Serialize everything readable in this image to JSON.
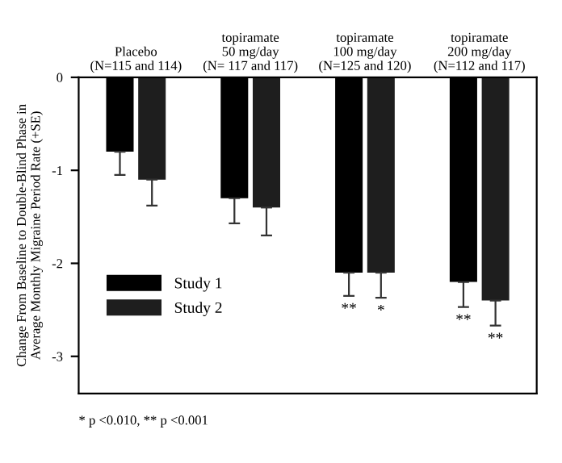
{
  "chart_data": {
    "type": "bar",
    "categories": [
      "Placebo\n(N=115 and 114)",
      "topiramate\n50 mg/day\n(N= 117 and 117)",
      "topiramate\n100 mg/day\n(N=125 and 120)",
      "topiramate\n200 mg/day\n(N=112 and 117)"
    ],
    "series": [
      {
        "name": "Study 1",
        "color": "#000000",
        "values": [
          -0.8,
          -1.3,
          -2.1,
          -2.2
        ],
        "errors": [
          [
            -1.05,
            -0.8
          ],
          [
            -1.57,
            -1.3
          ],
          [
            -2.35,
            -2.1
          ],
          [
            -2.47,
            -2.2
          ]
        ],
        "value_labels": [
          null,
          null,
          "**",
          "**"
        ]
      },
      {
        "name": "Study 2",
        "color": "#1e1e1e",
        "values": [
          -1.1,
          -1.4,
          -2.1,
          -2.4
        ],
        "errors": [
          [
            -1.38,
            -1.1
          ],
          [
            -1.7,
            -1.4
          ],
          [
            -2.37,
            -2.1
          ],
          [
            -2.67,
            -2.4
          ]
        ],
        "value_labels": [
          null,
          null,
          "*",
          "**"
        ]
      }
    ],
    "ylabel": "Change From Baseline to Double-Blind Phase in\nAverage Monthly Migraine Period Rate (+SE)",
    "ylim": [
      -3.4,
      0
    ],
    "yticks": [
      0,
      -1,
      -2,
      -3
    ],
    "legend": "bottom left",
    "grid": false,
    "annotations": [
      "* p <0.010, ** p <0.001"
    ]
  }
}
